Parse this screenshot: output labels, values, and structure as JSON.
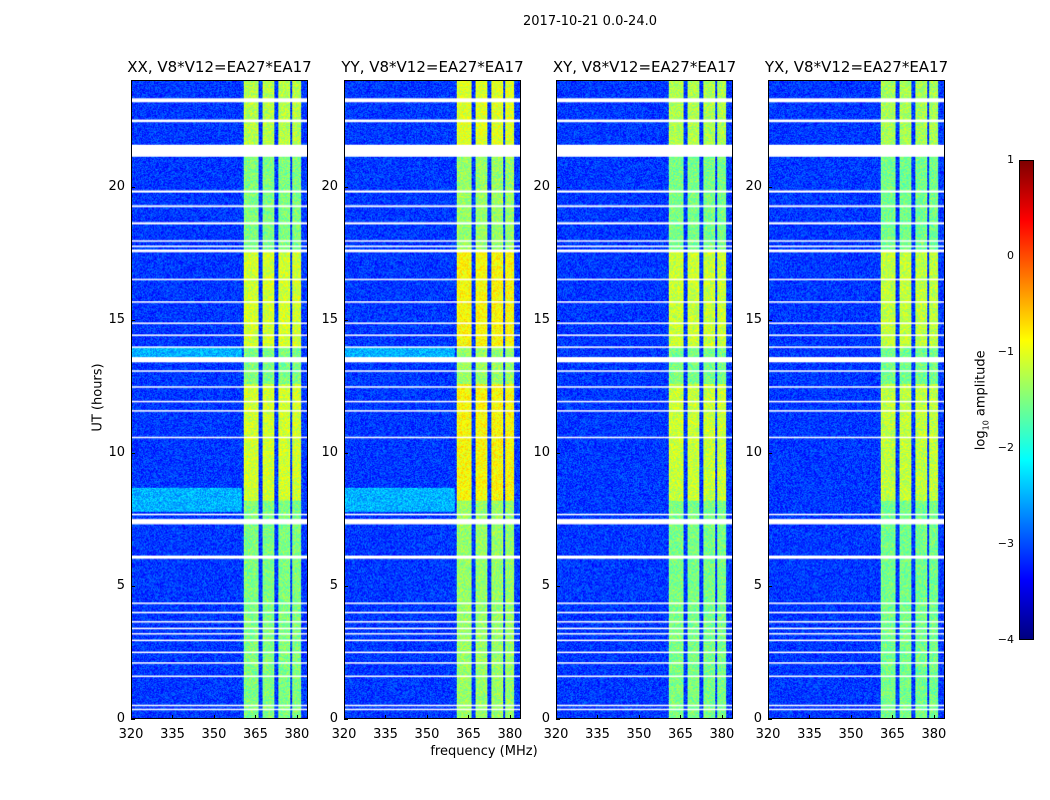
{
  "suptitle": "2017-10-21 0.0-24.0",
  "chart_data": {
    "type": "heatmap",
    "title": "2017-10-21 0.0-24.0",
    "xlabel": "frequency (MHz)",
    "ylabel": "UT (hours)",
    "xlim": [
      320,
      384
    ],
    "ylim": [
      0,
      24
    ],
    "xticks": [
      "320",
      "335",
      "350",
      "365",
      "380"
    ],
    "xtick_values": [
      320,
      335,
      350,
      365,
      380
    ],
    "yticks": [
      "0",
      "5",
      "10",
      "15",
      "20"
    ],
    "ytick_values": [
      0,
      5,
      10,
      15,
      20
    ],
    "panels": [
      {
        "title": "XX, V8*V12=EA27*EA17",
        "rfi_strength": 1.0
      },
      {
        "title": "YY, V8*V12=EA27*EA17",
        "rfi_strength": 1.25
      },
      {
        "title": "XY, V8*V12=EA27*EA17",
        "rfi_strength": 0.95
      },
      {
        "title": "YX, V8*V12=EA27*EA17",
        "rfi_strength": 0.9
      }
    ],
    "flagged_ut_hours": [
      [
        23.2,
        23.35
      ],
      [
        22.45,
        22.55
      ],
      [
        21.15,
        21.6
      ],
      [
        19.8,
        19.88
      ],
      [
        19.25,
        19.32
      ],
      [
        18.6,
        18.68
      ],
      [
        17.95,
        18.0
      ],
      [
        17.75,
        17.8
      ],
      [
        17.55,
        17.65
      ],
      [
        16.5,
        16.55
      ],
      [
        15.65,
        15.7
      ],
      [
        14.85,
        14.9
      ],
      [
        14.4,
        14.45
      ],
      [
        13.95,
        14.0
      ],
      [
        13.4,
        13.6
      ],
      [
        13.05,
        13.1
      ],
      [
        12.45,
        12.5
      ],
      [
        11.9,
        11.95
      ],
      [
        11.55,
        11.6
      ],
      [
        10.55,
        10.6
      ],
      [
        7.65,
        7.7
      ],
      [
        7.3,
        7.5
      ],
      [
        6.0,
        6.12
      ],
      [
        4.3,
        4.35
      ],
      [
        3.95,
        4.0
      ],
      [
        3.6,
        3.65
      ],
      [
        3.35,
        3.4
      ],
      [
        3.15,
        3.2
      ],
      [
        2.9,
        2.95
      ],
      [
        2.45,
        2.5
      ],
      [
        2.05,
        2.1
      ],
      [
        1.55,
        1.6
      ],
      [
        0.45,
        0.5
      ],
      [
        0.3,
        0.35
      ]
    ],
    "rfi_bands_mhz": [
      [
        360.5,
        366
      ],
      [
        367.5,
        372
      ],
      [
        373.5,
        377.5
      ],
      [
        378.5,
        381.5
      ]
    ],
    "colorbar": {
      "label": "log10 amplitude",
      "label_main": "log",
      "label_sub": "10",
      "label_rest": " amplitude",
      "range": [
        -4,
        1
      ],
      "ticks": [
        "1",
        "0",
        "−1",
        "−2",
        "−3",
        "−4"
      ],
      "tick_values": [
        1,
        0,
        -1,
        -2,
        -3,
        -4
      ],
      "colormap": "jet"
    }
  }
}
